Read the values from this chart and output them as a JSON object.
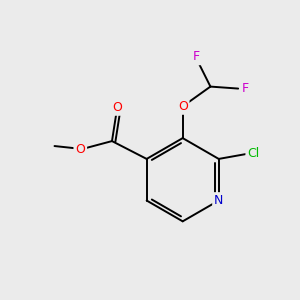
{
  "bg_color": "#EBEBEB",
  "bond_color": "#000000",
  "atom_colors": {
    "N": "#0000CC",
    "O": "#FF0000",
    "Cl": "#00BB00",
    "F": "#CC00CC",
    "C": "#000000"
  },
  "figsize": [
    3.0,
    3.0
  ],
  "dpi": 100,
  "lw": 1.4,
  "fontsize": 8.5
}
